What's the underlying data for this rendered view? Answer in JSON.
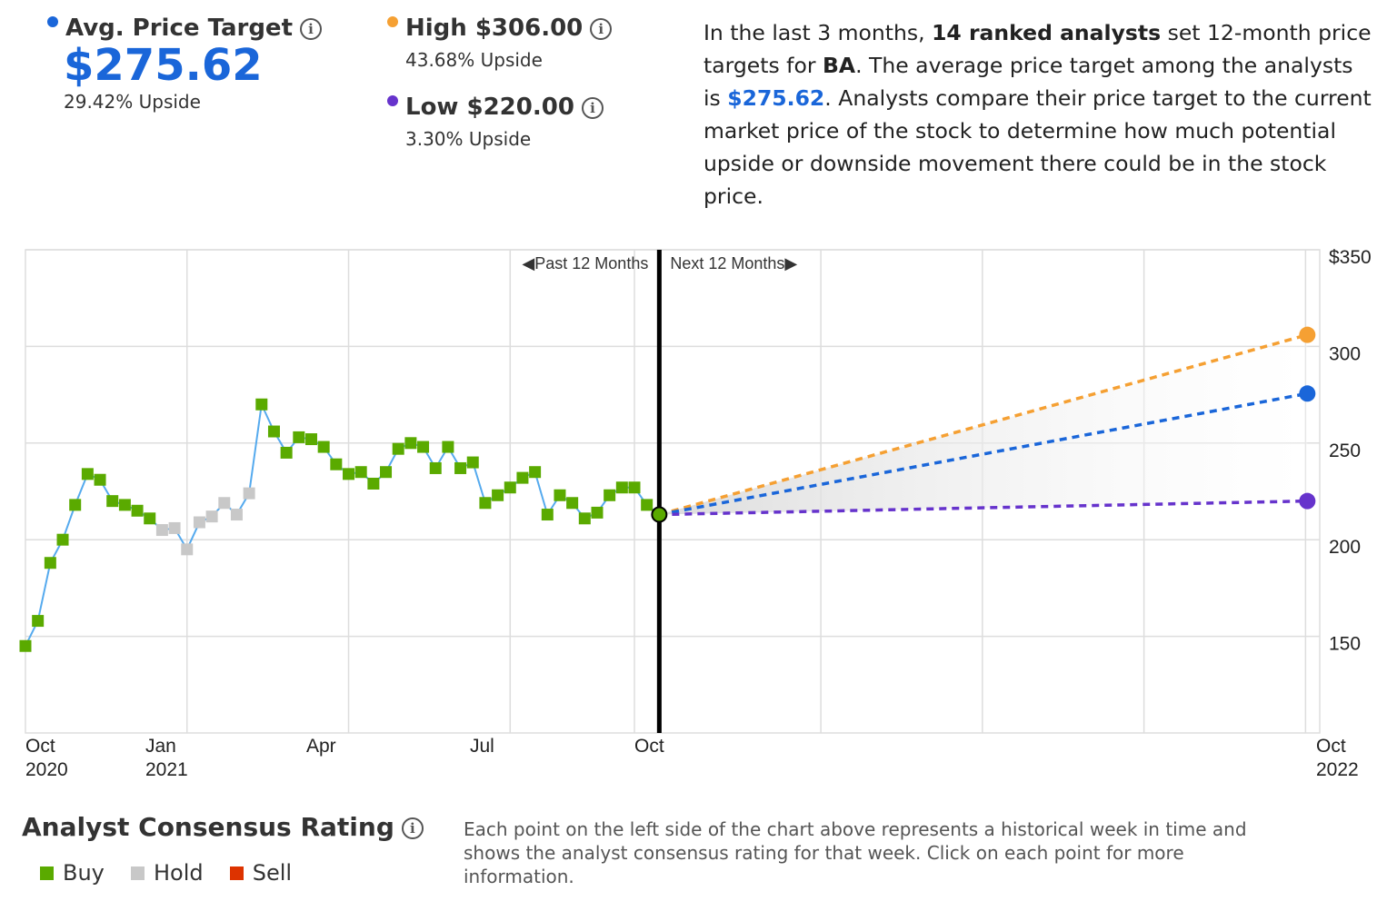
{
  "summary": {
    "avg": {
      "label": "Avg. Price Target",
      "value": "$275.62",
      "upside": "29.42% Upside"
    },
    "high": {
      "label": "High $306.00",
      "upside": "43.68% Upside"
    },
    "low": {
      "label": "Low $220.00",
      "upside": "3.30% Upside"
    },
    "info_glyph": "i"
  },
  "description": {
    "p1": "In the last 3 months, ",
    "b1": "14 ranked analysts",
    "p2": " set 12-month price targets for ",
    "b2": "BA",
    "p3": ". The average price target among the analysts is ",
    "hl": "$275.62",
    "p4": ". Analysts compare their price target to the current market price of the stock to determine how much potential upside or downside movement there could be in the stock price."
  },
  "consensus": {
    "title": "Analyst Consensus Rating",
    "legend": [
      {
        "label": "Buy",
        "color": "#5aaa00"
      },
      {
        "label": "Hold",
        "color": "#c8c8c8"
      },
      {
        "label": "Sell",
        "color": "#dd3300"
      }
    ],
    "note": "Each point on the left side of the chart above represents a historical week in time and shows the analyst consensus rating for that week. Click on each point for more information."
  },
  "colors": {
    "avg": "#1a66d9",
    "high": "#f5a033",
    "low": "#6633cc",
    "line": "#55aaee",
    "buy": "#5aaa00",
    "hold": "#c8c8c8"
  },
  "chart_data": {
    "type": "scatter",
    "past_label": "Past 12 Months",
    "next_label": "Next 12 Months",
    "y_ticks": [
      "$350",
      "300",
      "250",
      "200",
      "150"
    ],
    "y_tick_values": [
      350,
      300,
      250,
      200,
      150
    ],
    "ylim": [
      100,
      350
    ],
    "x_ticks": [
      {
        "month": "Oct",
        "year": "2020"
      },
      {
        "month": "Jan",
        "year": "2021"
      },
      {
        "month": "Apr",
        "year": ""
      },
      {
        "month": "Jul",
        "year": ""
      },
      {
        "month": "Oct",
        "year": ""
      },
      {
        "month": "Oct",
        "year": "2022"
      }
    ],
    "history": [
      {
        "date": "2020-09-29",
        "value": 145,
        "rating": "buy"
      },
      {
        "date": "2020-10-06",
        "value": 158,
        "rating": "buy"
      },
      {
        "date": "2020-10-13",
        "value": 188,
        "rating": "buy"
      },
      {
        "date": "2020-10-20",
        "value": 200,
        "rating": "buy"
      },
      {
        "date": "2020-10-27",
        "value": 218,
        "rating": "buy"
      },
      {
        "date": "2020-11-03",
        "value": 234,
        "rating": "buy"
      },
      {
        "date": "2020-11-10",
        "value": 231,
        "rating": "buy"
      },
      {
        "date": "2020-11-17",
        "value": 220,
        "rating": "buy"
      },
      {
        "date": "2020-11-24",
        "value": 218,
        "rating": "buy"
      },
      {
        "date": "2020-12-01",
        "value": 215,
        "rating": "buy"
      },
      {
        "date": "2020-12-08",
        "value": 211,
        "rating": "buy"
      },
      {
        "date": "2020-12-15",
        "value": 205,
        "rating": "hold"
      },
      {
        "date": "2020-12-22",
        "value": 206,
        "rating": "hold"
      },
      {
        "date": "2020-12-29",
        "value": 195,
        "rating": "hold"
      },
      {
        "date": "2021-01-05",
        "value": 209,
        "rating": "hold"
      },
      {
        "date": "2021-01-12",
        "value": 212,
        "rating": "hold"
      },
      {
        "date": "2021-01-19",
        "value": 219,
        "rating": "hold"
      },
      {
        "date": "2021-01-26",
        "value": 213,
        "rating": "hold"
      },
      {
        "date": "2021-02-02",
        "value": 224,
        "rating": "hold"
      },
      {
        "date": "2021-02-09",
        "value": 270,
        "rating": "buy"
      },
      {
        "date": "2021-02-16",
        "value": 256,
        "rating": "buy"
      },
      {
        "date": "2021-02-23",
        "value": 245,
        "rating": "buy"
      },
      {
        "date": "2021-03-02",
        "value": 253,
        "rating": "buy"
      },
      {
        "date": "2021-03-09",
        "value": 252,
        "rating": "buy"
      },
      {
        "date": "2021-03-16",
        "value": 248,
        "rating": "buy"
      },
      {
        "date": "2021-03-23",
        "value": 239,
        "rating": "buy"
      },
      {
        "date": "2021-03-30",
        "value": 234,
        "rating": "buy"
      },
      {
        "date": "2021-04-06",
        "value": 235,
        "rating": "buy"
      },
      {
        "date": "2021-04-13",
        "value": 229,
        "rating": "buy"
      },
      {
        "date": "2021-04-20",
        "value": 235,
        "rating": "buy"
      },
      {
        "date": "2021-04-27",
        "value": 247,
        "rating": "buy"
      },
      {
        "date": "2021-05-04",
        "value": 250,
        "rating": "buy"
      },
      {
        "date": "2021-05-11",
        "value": 248,
        "rating": "buy"
      },
      {
        "date": "2021-05-18",
        "value": 237,
        "rating": "buy"
      },
      {
        "date": "2021-05-25",
        "value": 248,
        "rating": "buy"
      },
      {
        "date": "2021-06-01",
        "value": 237,
        "rating": "buy"
      },
      {
        "date": "2021-06-08",
        "value": 240,
        "rating": "buy"
      },
      {
        "date": "2021-06-15",
        "value": 219,
        "rating": "buy"
      },
      {
        "date": "2021-06-22",
        "value": 223,
        "rating": "buy"
      },
      {
        "date": "2021-06-29",
        "value": 227,
        "rating": "buy"
      },
      {
        "date": "2021-07-06",
        "value": 232,
        "rating": "buy"
      },
      {
        "date": "2021-07-13",
        "value": 235,
        "rating": "buy"
      },
      {
        "date": "2021-07-20",
        "value": 213,
        "rating": "buy"
      },
      {
        "date": "2021-07-27",
        "value": 223,
        "rating": "buy"
      },
      {
        "date": "2021-08-03",
        "value": 219,
        "rating": "buy"
      },
      {
        "date": "2021-08-10",
        "value": 211,
        "rating": "buy"
      },
      {
        "date": "2021-08-17",
        "value": 214,
        "rating": "buy"
      },
      {
        "date": "2021-08-24",
        "value": 223,
        "rating": "buy"
      },
      {
        "date": "2021-08-31",
        "value": 227,
        "rating": "buy"
      },
      {
        "date": "2021-09-07",
        "value": 227,
        "rating": "buy"
      },
      {
        "date": "2021-09-14",
        "value": 218,
        "rating": "buy"
      },
      {
        "date": "2021-09-21",
        "value": 213,
        "rating": "buy"
      }
    ],
    "current": {
      "date": "2021-09-21",
      "value": 213
    },
    "projections": [
      {
        "name": "high",
        "date": "2022-09-21",
        "value": 306
      },
      {
        "name": "avg",
        "date": "2022-09-21",
        "value": 275.62
      },
      {
        "name": "low",
        "date": "2022-09-21",
        "value": 220
      }
    ]
  }
}
